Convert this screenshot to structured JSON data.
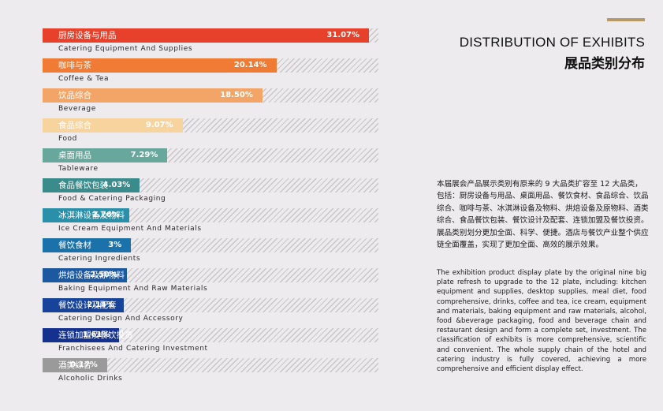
{
  "header": {
    "title_en": "DISTRIBUTION OF EXHIBITS",
    "title_cn": "展品类别分布",
    "accent_color": "#b59a68"
  },
  "description": {
    "cn": "本届展会产品展示类别有原来的 9 大品类扩容至 12 大品类，包括：厨房设备与用品、桌面用品、餐饮食材、食品综合、饮品综合、咖啡与茶、冰淇淋设备及物料、烘焙设备及原物料、酒类综合、食品餐饮包装、餐饮设计及配套、连锁加盟及餐饮投资。展品类别划分更加全面、科学、便捷。酒店与餐饮产业整个供应链全面覆盖，实现了更加全面、高效的展示效果。",
    "en": "The exhibition product display plate by the original nine big plate refresh to upgrade to the 12 plate, including: kitchen equipment and supplies, desktop supplies, meal diet, food comprehensive, drinks, coffee and tea, ice cream, equipment and materials, baking equipment and raw materials, alcohol, food &beverage packaging, food and beverage chain and restaurant design and form a complete set, investment. The classification of exhibits is more comprehensive, scientific and convenient. The whole supply chain of the hotel and catering industry is fully covered, achieving a more comprehensive and efficient display effect."
  },
  "chart_data": {
    "type": "bar",
    "orientation": "horizontal",
    "title": "",
    "xlabel": "",
    "ylabel": "",
    "xlim": [
      0,
      31.07
    ],
    "categories": [
      "厨房设备与用品",
      "咖啡与茶",
      "饮品综合",
      "食品综合",
      "桌面用品",
      "食品餐饮包装",
      "冰淇淋设备及物料",
      "餐饮食材",
      "烘焙设备及原物料",
      "餐饮设计及配套",
      "连锁加盟及餐饮投资",
      "酒类综合"
    ],
    "categories_en": [
      "Catering Equipment And Supplies",
      "Coffee & Tea",
      "Beverage",
      "Food",
      "Tableware",
      "Food & Catering Packaging",
      "Ice Cream Equipment And Materials",
      "Catering Ingredients",
      "Baking Equipment And Raw Materials",
      "Catering Design And Accessory",
      "Franchisees And Catering Investment",
      "Alcoholic Drinks"
    ],
    "values": [
      31.07,
      20.14,
      18.5,
      9.07,
      7.29,
      4.03,
      2.76,
      3,
      2.5,
      2.14,
      1.61,
      0.17
    ],
    "value_labels": [
      "31.07%",
      "20.14%",
      "18.50%",
      "9.07%",
      "7.29%",
      "4.03%",
      "2.76%",
      "3%",
      "2.50%",
      "2.14%",
      "1.61%",
      "0.17%"
    ],
    "colors": [
      "#e8412b",
      "#ef7b35",
      "#f3a567",
      "#f7d49d",
      "#67a79c",
      "#3a8b8b",
      "#2a8fa8",
      "#1b72ab",
      "#1d59a0",
      "#17449a",
      "#13318d",
      "#9a9a9a"
    ]
  }
}
